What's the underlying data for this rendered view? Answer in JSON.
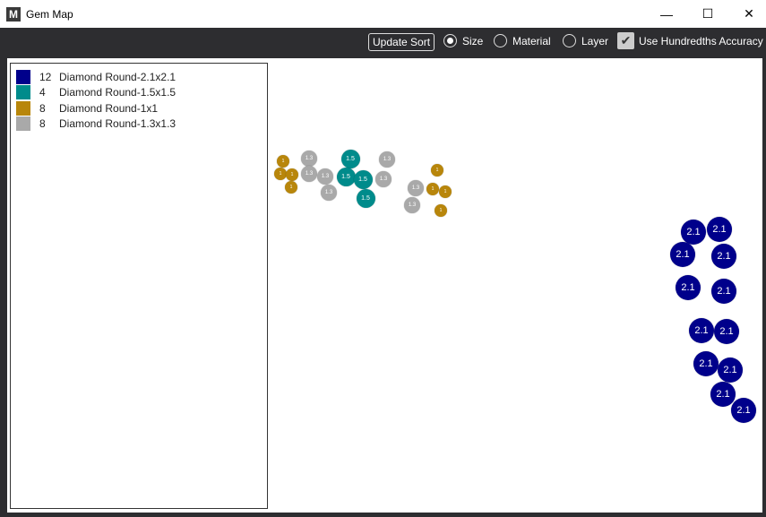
{
  "window": {
    "title": "Gem Map",
    "minimize": "—",
    "maximize": "☐",
    "close": "✕"
  },
  "toolbar": {
    "update_sort": "Update Sort",
    "radios": [
      {
        "label": "Size",
        "selected": true
      },
      {
        "label": "Material",
        "selected": false
      },
      {
        "label": "Layer",
        "selected": false
      }
    ],
    "checkbox": {
      "label": "Use Hundredths Accuracy",
      "checked": true
    }
  },
  "legend": [
    {
      "count": "12",
      "name": "Diamond Round-2.1x2.1",
      "color": "#00008b"
    },
    {
      "count": "4",
      "name": "Diamond Round-1.5x1.5",
      "color": "#008b8b"
    },
    {
      "count": "8",
      "name": "Diamond Round-1x1",
      "color": "#b8860b"
    },
    {
      "count": "8",
      "name": "Diamond Round-1.3x1.3",
      "color": "#a9a9a9"
    }
  ],
  "gems": {
    "2.1": {
      "label": "2.1",
      "color": "#00008b",
      "count": 12
    },
    "1.5": {
      "label": "1.5",
      "color": "#008b8b",
      "count": 4
    },
    "1": {
      "label": "1",
      "color": "#b8860b",
      "count": 8
    },
    "1.3": {
      "label": "1.3",
      "color": "#a9a9a9",
      "count": 8
    }
  }
}
